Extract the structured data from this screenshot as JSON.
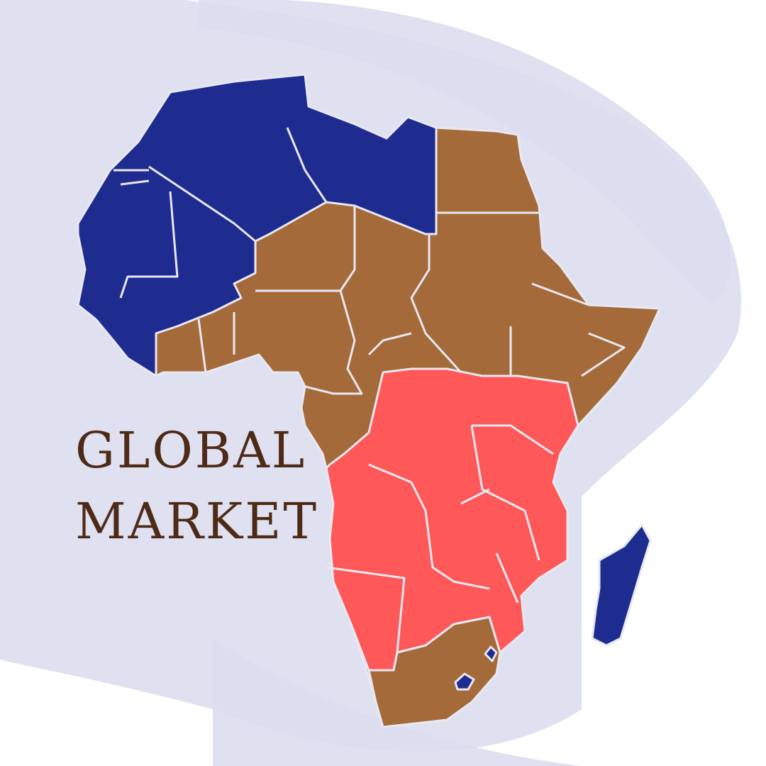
{
  "title": {
    "line1": "GLOBAL",
    "line2": "MARKET"
  },
  "colors": {
    "background": "#ffffff",
    "brush": "#dcdef0",
    "north_region": "#1f2c8f",
    "central_region": "#a56a3a",
    "southern_region": "#fe5858",
    "border": "#e8e8f2",
    "text": "#4e2b17"
  }
}
